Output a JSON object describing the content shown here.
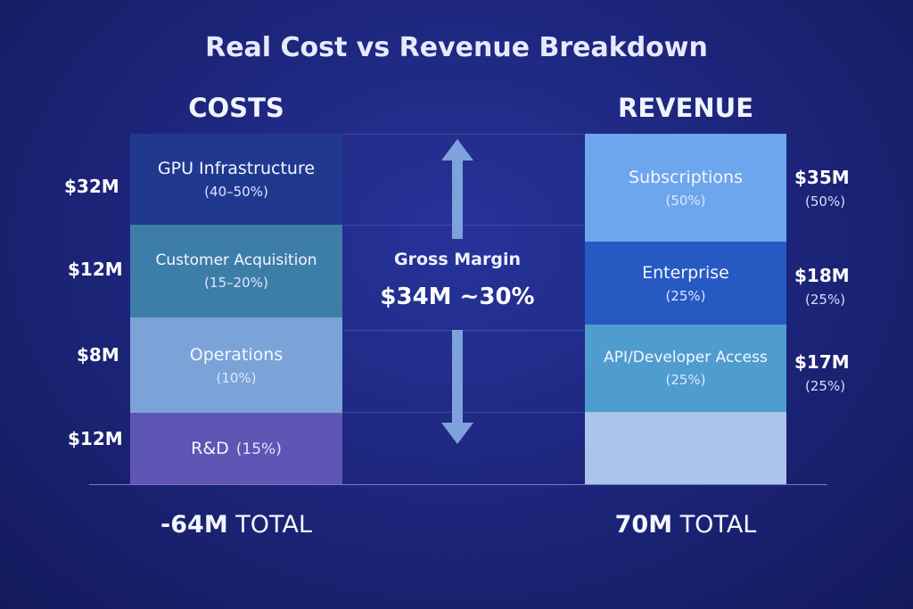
{
  "title": "Real Cost vs Revenue Breakdown",
  "colors": {
    "gpu": "#21388f",
    "customer": "#3d7ea8",
    "operations": "#7ba3d8",
    "rnd": "#5f55b4",
    "subscriptions": "#6da6ec",
    "enterprise": "#2759c2",
    "api": "#4f9dce",
    "revenue_blank": "#aac4ea",
    "arrow": "#7ea2dc"
  },
  "chart_data": {
    "type": "bar",
    "title": "Real Cost vs Revenue Breakdown",
    "stacks": [
      {
        "name": "COSTS",
        "total_number": "-64M",
        "total_word": "TOTAL",
        "segments": [
          {
            "label": "GPU Infrastructure",
            "pct": "(40–50%)",
            "value_label": "$32M",
            "value": 32
          },
          {
            "label": "Customer Acquisition",
            "pct": "(15–20%)",
            "value_label": "$12M",
            "value": 12
          },
          {
            "label": "Operations",
            "pct": "(10%)",
            "value_label": "$8M",
            "value": 8
          },
          {
            "label": "R&D",
            "pct": "(15%)",
            "value_label": "$12M",
            "value": 12
          }
        ]
      },
      {
        "name": "REVENUE",
        "total_number": "70M",
        "total_word": "TOTAL",
        "segments": [
          {
            "label": "Subscriptions",
            "pct": "(50%)",
            "value_label": "$35M",
            "value": 35
          },
          {
            "label": "Enterprise",
            "pct": "(25%)",
            "value_label": "$18M",
            "value": 18
          },
          {
            "label": "API/Developer Access",
            "pct": "(25%)",
            "value_label": "$17M",
            "value": 17
          }
        ]
      }
    ],
    "gross_margin": {
      "label": "Gross Margin",
      "value_text": "$34M ~30%"
    }
  }
}
